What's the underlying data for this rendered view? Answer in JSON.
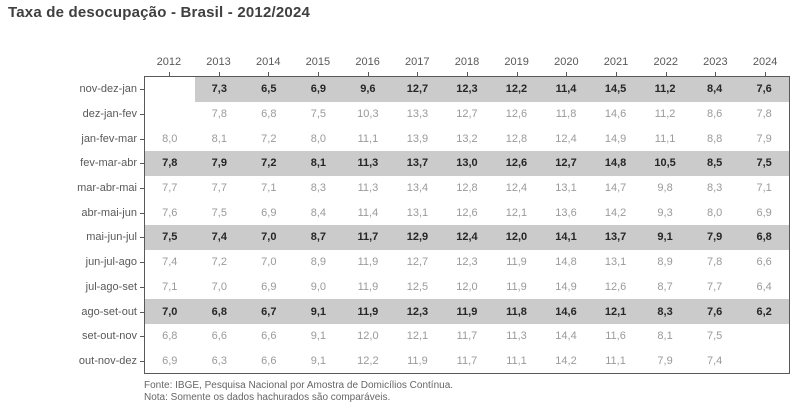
{
  "title": "Taxa de desocupação - Brasil - 2012/2024",
  "footer": {
    "source": "Fonte: IBGE, Pesquisa Nacional por Amostra de Domicílios Contínua.",
    "note": "Nota: Somente os dados hachurados são comparáveis."
  },
  "colors": {
    "highlight_band": "#cbcbcb",
    "value_normal": "#9a9a9a",
    "value_highlight": "#262626",
    "axis_label": "#595959",
    "frame_line": "#595959",
    "title_color": "#3f3f3f",
    "footer_color": "#666666"
  },
  "chart_data": {
    "type": "table",
    "title": "Taxa de desocupação - Brasil - 2012/2024",
    "columns": [
      "2012",
      "2013",
      "2014",
      "2015",
      "2016",
      "2017",
      "2018",
      "2019",
      "2020",
      "2021",
      "2022",
      "2023",
      "2024"
    ],
    "rows": [
      {
        "label": "nov-dez-jan",
        "highlighted": true,
        "values": [
          null,
          "7,3",
          "6,5",
          "6,9",
          "9,6",
          "12,7",
          "12,3",
          "12,2",
          "11,4",
          "14,5",
          "11,2",
          "8,4",
          "7,6"
        ]
      },
      {
        "label": "dez-jan-fev",
        "highlighted": false,
        "values": [
          null,
          "7,8",
          "6,8",
          "7,5",
          "10,3",
          "13,3",
          "12,7",
          "12,6",
          "11,8",
          "14,6",
          "11,2",
          "8,6",
          "7,8"
        ]
      },
      {
        "label": "jan-fev-mar",
        "highlighted": false,
        "values": [
          "8,0",
          "8,1",
          "7,2",
          "8,0",
          "11,1",
          "13,9",
          "13,2",
          "12,8",
          "12,4",
          "14,9",
          "11,1",
          "8,8",
          "7,9"
        ]
      },
      {
        "label": "fev-mar-abr",
        "highlighted": true,
        "values": [
          "7,8",
          "7,9",
          "7,2",
          "8,1",
          "11,3",
          "13,7",
          "13,0",
          "12,6",
          "12,7",
          "14,8",
          "10,5",
          "8,5",
          "7,5"
        ]
      },
      {
        "label": "mar-abr-mai",
        "highlighted": false,
        "values": [
          "7,7",
          "7,7",
          "7,1",
          "8,3",
          "11,3",
          "13,4",
          "12,8",
          "12,4",
          "13,1",
          "14,7",
          "9,8",
          "8,3",
          "7,1"
        ]
      },
      {
        "label": "abr-mai-jun",
        "highlighted": false,
        "values": [
          "7,6",
          "7,5",
          "6,9",
          "8,4",
          "11,4",
          "13,1",
          "12,6",
          "12,1",
          "13,6",
          "14,2",
          "9,3",
          "8,0",
          "6,9"
        ]
      },
      {
        "label": "mai-jun-jul",
        "highlighted": true,
        "values": [
          "7,5",
          "7,4",
          "7,0",
          "8,7",
          "11,7",
          "12,9",
          "12,4",
          "12,0",
          "14,1",
          "13,7",
          "9,1",
          "7,9",
          "6,8"
        ]
      },
      {
        "label": "jun-jul-ago",
        "highlighted": false,
        "values": [
          "7,4",
          "7,2",
          "7,0",
          "8,9",
          "11,9",
          "12,7",
          "12,3",
          "11,9",
          "14,8",
          "13,1",
          "8,9",
          "7,8",
          "6,6"
        ]
      },
      {
        "label": "jul-ago-set",
        "highlighted": false,
        "values": [
          "7,1",
          "7,0",
          "6,9",
          "9,0",
          "11,9",
          "12,5",
          "12,0",
          "11,9",
          "14,9",
          "12,6",
          "8,7",
          "7,7",
          "6,4"
        ]
      },
      {
        "label": "ago-set-out",
        "highlighted": true,
        "values": [
          "7,0",
          "6,8",
          "6,7",
          "9,1",
          "11,9",
          "12,3",
          "11,9",
          "11,8",
          "14,6",
          "12,1",
          "8,3",
          "7,6",
          "6,2"
        ]
      },
      {
        "label": "set-out-nov",
        "highlighted": false,
        "values": [
          "6,8",
          "6,6",
          "6,6",
          "9,1",
          "12,0",
          "12,1",
          "11,7",
          "11,3",
          "14,4",
          "11,6",
          "8,1",
          "7,5",
          null
        ]
      },
      {
        "label": "out-nov-dez",
        "highlighted": false,
        "values": [
          "6,9",
          "6,3",
          "6,6",
          "9,1",
          "12,2",
          "11,9",
          "11,7",
          "11,1",
          "14,2",
          "11,1",
          "7,9",
          "7,4",
          null
        ]
      }
    ]
  }
}
